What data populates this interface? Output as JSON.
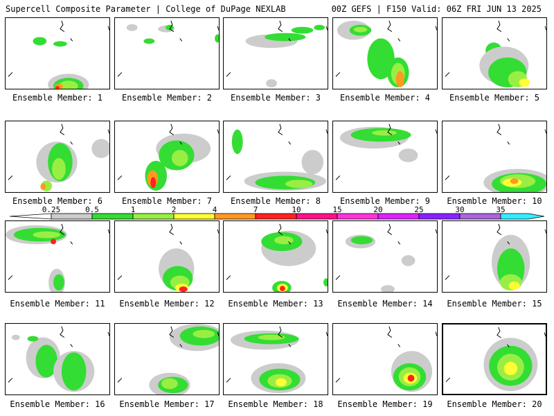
{
  "header": {
    "title": "Supercell Composite Parameter | College of DuPage NEXLAB",
    "run_info": "00Z GEFS | F150 Valid: 06Z FRI JUN 13 2025"
  },
  "caption_prefix": "Ensemble Member:",
  "members": [
    {
      "number": 1,
      "caption": "Ensemble Member: 1"
    },
    {
      "number": 2,
      "caption": "Ensemble Member: 2"
    },
    {
      "number": 3,
      "caption": "Ensemble Member: 3"
    },
    {
      "number": 4,
      "caption": "Ensemble Member: 4"
    },
    {
      "number": 5,
      "caption": "Ensemble Member: 5"
    },
    {
      "number": 6,
      "caption": "Ensemble Member: 6"
    },
    {
      "number": 7,
      "caption": "Ensemble Member: 7"
    },
    {
      "number": 8,
      "caption": "Ensemble Member: 8"
    },
    {
      "number": 9,
      "caption": "Ensemble Member: 9"
    },
    {
      "number": 10,
      "caption": "Ensemble Member: 10"
    },
    {
      "number": 11,
      "caption": "Ensemble Member: 11"
    },
    {
      "number": 12,
      "caption": "Ensemble Member: 12"
    },
    {
      "number": 13,
      "caption": "Ensemble Member: 13"
    },
    {
      "number": 14,
      "caption": "Ensemble Member: 14"
    },
    {
      "number": 15,
      "caption": "Ensemble Member: 15"
    },
    {
      "number": 16,
      "caption": "Ensemble Member: 16"
    },
    {
      "number": 17,
      "caption": "Ensemble Member: 17"
    },
    {
      "number": 18,
      "caption": "Ensemble Member: 18"
    },
    {
      "number": 19,
      "caption": "Ensemble Member: 19"
    },
    {
      "number": 20,
      "caption": "Ensemble Member: 20"
    }
  ],
  "selected_member": 20,
  "legend": {
    "labels": [
      "0.25",
      "0.5",
      "1",
      "2",
      "4",
      "7",
      "10",
      "15",
      "20",
      "25",
      "30",
      "35"
    ],
    "colors": [
      "#cccccc",
      "#33dd33",
      "#99ee44",
      "#ffff33",
      "#ff9922",
      "#ff2222",
      "#ff1188",
      "#ff33dd",
      "#dd22ff",
      "#8822ff",
      "#aa66dd",
      "#33eeff"
    ]
  },
  "colors": {
    "level1": "#cccccc",
    "level2": "#33dd33",
    "level3": "#99ee44",
    "level4": "#ffff33",
    "level5": "#ff9922",
    "level6": "#ff2222"
  }
}
